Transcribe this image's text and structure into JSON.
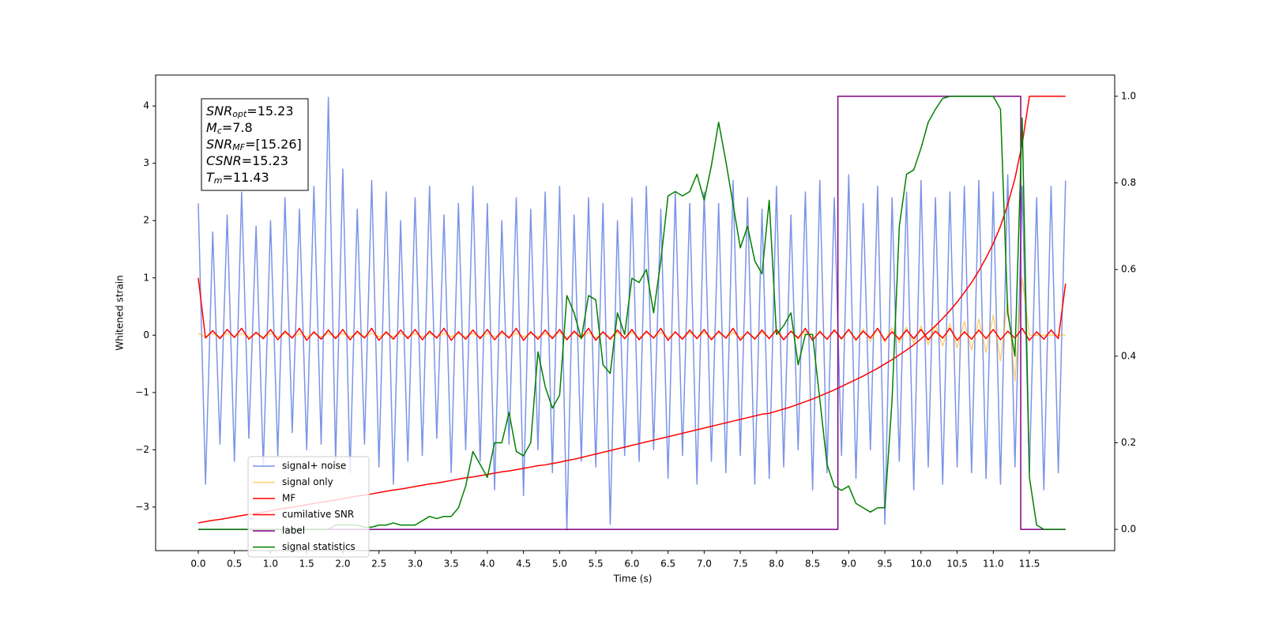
{
  "chart_data": {
    "type": "line",
    "xlabel": "Time (s)",
    "ylabel": "Whitened strain",
    "xlim": [
      -0.59,
      12.68
    ],
    "ylim": [
      -3.76,
      4.54
    ],
    "y2lim": [
      -0.049,
      1.049
    ],
    "xticks": [
      {
        "value": 0,
        "label": "0.0"
      },
      0.5,
      {
        "value": 1,
        "label": "1.0"
      },
      1.5,
      {
        "value": 2,
        "label": "2.0"
      },
      2.5,
      {
        "value": 3,
        "label": "3.0"
      },
      3.5,
      {
        "value": 4,
        "label": "4.0"
      },
      4.5,
      {
        "value": 5,
        "label": "5.0"
      },
      5.5,
      {
        "value": 6,
        "label": "6.0"
      },
      6.5,
      {
        "value": 7,
        "label": "7.0"
      },
      7.5,
      {
        "value": 8,
        "label": "8.0"
      },
      8.5,
      {
        "value": 9,
        "label": "9.0"
      },
      9.5,
      {
        "value": 10,
        "label": "10.0"
      },
      10.5,
      {
        "value": 11,
        "label": "11.0"
      },
      11.5
    ],
    "yticks": [
      {
        "value": -3,
        "label": "−3"
      },
      {
        "value": -2,
        "label": "−2"
      },
      {
        "value": -1,
        "label": "−1"
      },
      0,
      1,
      2,
      3,
      4
    ],
    "y2ticks": [
      {
        "value": 0,
        "label": "0.0"
      },
      0.2,
      0.4,
      0.6,
      0.8,
      {
        "value": 1,
        "label": "1.0"
      }
    ],
    "annotations": [
      {
        "symbol": "SNR",
        "sub": "opt",
        "text": "=15.23"
      },
      {
        "symbol": "M",
        "sub": "c",
        "text": "=7.8"
      },
      {
        "symbol": "SNR",
        "sub": "MF",
        "text": "=[15.26]"
      },
      {
        "symbol": "CSNR",
        "text": "=15.23"
      },
      {
        "symbol": "T",
        "sub": "m",
        "text": "=11.43"
      }
    ],
    "legend": "lower left",
    "x": [
      0,
      0.1,
      0.2,
      0.3,
      0.4,
      0.5,
      0.6,
      0.7,
      0.8,
      0.9,
      1,
      1.1,
      1.2,
      1.3,
      1.4,
      1.5,
      1.6,
      1.7,
      1.8,
      1.9,
      2,
      2.1,
      2.2,
      2.3,
      2.4,
      2.5,
      2.6,
      2.7,
      2.8,
      2.9,
      3,
      3.1,
      3.2,
      3.3,
      3.4,
      3.5,
      3.6,
      3.7,
      3.8,
      3.9,
      4,
      4.1,
      4.2,
      4.3,
      4.4,
      4.5,
      4.6,
      4.7,
      4.8,
      4.9,
      5,
      5.1,
      5.2,
      5.3,
      5.4,
      5.5,
      5.6,
      5.7,
      5.8,
      5.9,
      6,
      6.1,
      6.2,
      6.3,
      6.4,
      6.5,
      6.6,
      6.7,
      6.8,
      6.9,
      7,
      7.1,
      7.2,
      7.3,
      7.4,
      7.5,
      7.6,
      7.7,
      7.8,
      7.9,
      8,
      8.1,
      8.2,
      8.3,
      8.4,
      8.5,
      8.6,
      8.7,
      8.8,
      8.9,
      9,
      9.1,
      9.2,
      9.3,
      9.4,
      9.5,
      9.6,
      9.7,
      9.8,
      9.9,
      10,
      10.1,
      10.2,
      10.3,
      10.4,
      10.5,
      10.6,
      10.7,
      10.8,
      10.9,
      11,
      11.1,
      11.2,
      11.3,
      11.4,
      11.5,
      11.6,
      11.7,
      11.8,
      11.9,
      12
    ],
    "series": [
      {
        "name": "signal+ noise",
        "color": "#7b94e6",
        "values": [
          2.3,
          -2.6,
          1.8,
          -1.9,
          2.1,
          -2.2,
          2.5,
          -1.8,
          1.9,
          -2.3,
          2.0,
          -2.1,
          2.4,
          -1.7,
          2.2,
          -2.0,
          2.6,
          -1.9,
          4.15,
          -2.2,
          2.9,
          -2.4,
          2.2,
          -1.9,
          2.7,
          -2.3,
          2.5,
          -2.6,
          2.0,
          -2.2,
          2.4,
          -2.1,
          2.6,
          -1.8,
          2.1,
          -2.4,
          2.3,
          -2.0,
          2.6,
          -2.2,
          2.3,
          -2.7,
          2.0,
          -1.9,
          2.4,
          -2.8,
          2.2,
          -2.0,
          2.5,
          -2.4,
          2.6,
          -3.4,
          2.1,
          -2.2,
          2.4,
          -2.3,
          2.3,
          -3.3,
          2.0,
          -2.1,
          2.4,
          -2.2,
          2.6,
          -2.0,
          2.2,
          -2.5,
          2.5,
          -2.1,
          2.3,
          -2.6,
          2.5,
          -2.2,
          2.3,
          -2.4,
          2.7,
          -2.1,
          2.4,
          -2.6,
          2.2,
          -2.5,
          2.6,
          -2.3,
          2.1,
          -2.0,
          2.5,
          -2.7,
          2.7,
          -2.4,
          2.4,
          -2.1,
          2.8,
          -2.5,
          2.3,
          -2.0,
          2.6,
          -3.3,
          2.4,
          -2.2,
          2.5,
          -2.7,
          2.7,
          -2.3,
          2.4,
          -2.6,
          2.5,
          -2.3,
          2.6,
          -2.4,
          2.7,
          -2.5,
          2.5,
          -2.6,
          2.8,
          -2.3,
          2.6,
          -2.4,
          2.4,
          -2.7,
          2.6,
          -2.4,
          2.7
        ]
      },
      {
        "name": "signal only",
        "color": "#ffa500",
        "values": [
          0.03,
          -0.03,
          0.03,
          -0.03,
          0.03,
          -0.03,
          0.03,
          -0.03,
          0.03,
          -0.03,
          0.03,
          -0.03,
          0.03,
          -0.03,
          0.03,
          -0.03,
          0.03,
          -0.03,
          0.03,
          -0.03,
          0.03,
          -0.03,
          0.03,
          -0.03,
          0.03,
          -0.03,
          0.03,
          -0.03,
          0.03,
          -0.03,
          0.03,
          -0.03,
          0.03,
          -0.03,
          0.03,
          -0.03,
          0.03,
          -0.03,
          0.03,
          -0.03,
          0.03,
          -0.03,
          0.03,
          -0.03,
          0.03,
          -0.03,
          0.03,
          -0.03,
          0.03,
          -0.03,
          0.05,
          -0.05,
          0.05,
          -0.05,
          0.05,
          -0.05,
          0.05,
          -0.05,
          0.05,
          -0.05,
          0.05,
          -0.05,
          0.05,
          -0.05,
          0.05,
          -0.05,
          0.05,
          -0.05,
          0.05,
          -0.05,
          0.05,
          -0.05,
          0.05,
          -0.05,
          0.05,
          -0.05,
          0.05,
          -0.05,
          0.05,
          -0.05,
          0.07,
          -0.07,
          0.07,
          -0.07,
          0.07,
          -0.08,
          0.08,
          -0.08,
          0.08,
          -0.08,
          0.1,
          -0.1,
          0.11,
          -0.11,
          0.12,
          -0.12,
          0.13,
          -0.13,
          0.14,
          -0.14,
          0.16,
          -0.17,
          0.18,
          -0.19,
          0.2,
          -0.22,
          0.24,
          -0.26,
          0.28,
          -0.3,
          0.35,
          -0.45,
          0.6,
          -0.8,
          1.0,
          0,
          0,
          0,
          0,
          0,
          0
        ]
      },
      {
        "name": "MF",
        "color": "#ff0000",
        "values": [
          1.0,
          -0.05,
          0.08,
          -0.06,
          0.1,
          -0.04,
          0.12,
          -0.07,
          0.05,
          -0.06,
          0.1,
          -0.08,
          0.07,
          -0.05,
          0.12,
          -0.09,
          0.06,
          -0.07,
          0.09,
          -0.06,
          0.1,
          -0.08,
          0.07,
          -0.05,
          0.12,
          -0.09,
          0.06,
          -0.07,
          0.09,
          -0.06,
          0.1,
          -0.08,
          0.07,
          -0.05,
          0.12,
          -0.09,
          0.06,
          -0.07,
          0.09,
          -0.06,
          0.1,
          -0.08,
          0.07,
          -0.05,
          0.12,
          -0.09,
          0.06,
          -0.07,
          0.09,
          -0.06,
          0.1,
          -0.08,
          0.07,
          -0.05,
          0.12,
          -0.09,
          0.06,
          -0.07,
          0.09,
          -0.06,
          0.1,
          -0.08,
          0.07,
          -0.05,
          0.12,
          -0.09,
          0.06,
          -0.07,
          0.09,
          -0.06,
          0.1,
          -0.08,
          0.07,
          -0.05,
          0.12,
          -0.09,
          0.06,
          -0.07,
          0.09,
          -0.06,
          0.1,
          -0.08,
          0.07,
          -0.05,
          0.12,
          -0.09,
          0.06,
          -0.07,
          0.09,
          -0.06,
          0.1,
          -0.08,
          0.07,
          -0.05,
          0.12,
          -0.09,
          0.06,
          -0.07,
          0.09,
          -0.06,
          0.1,
          -0.08,
          0.07,
          -0.05,
          0.12,
          -0.09,
          0.06,
          -0.07,
          0.09,
          -0.06,
          0.1,
          -0.08,
          0.07,
          -0.05,
          0.12,
          -0.09,
          0.06,
          -0.07,
          0.09,
          -0.06,
          0.9
        ]
      },
      {
        "name": "cumilative SNR",
        "color": "#ff0000",
        "axis": "y2",
        "values": [
          0.015,
          0.018,
          0.021,
          0.023,
          0.026,
          0.029,
          0.032,
          0.035,
          0.037,
          0.04,
          0.043,
          0.046,
          0.049,
          0.051,
          0.054,
          0.057,
          0.06,
          0.063,
          0.065,
          0.068,
          0.071,
          0.074,
          0.077,
          0.079,
          0.082,
          0.085,
          0.088,
          0.091,
          0.093,
          0.096,
          0.099,
          0.102,
          0.105,
          0.107,
          0.11,
          0.113,
          0.116,
          0.119,
          0.121,
          0.124,
          0.127,
          0.13,
          0.133,
          0.135,
          0.138,
          0.141,
          0.144,
          0.147,
          0.149,
          0.152,
          0.155,
          0.159,
          0.162,
          0.166,
          0.17,
          0.174,
          0.178,
          0.182,
          0.186,
          0.19,
          0.194,
          0.198,
          0.202,
          0.206,
          0.21,
          0.214,
          0.218,
          0.222,
          0.226,
          0.23,
          0.234,
          0.238,
          0.242,
          0.246,
          0.25,
          0.254,
          0.258,
          0.262,
          0.266,
          0.268,
          0.273,
          0.278,
          0.283,
          0.289,
          0.295,
          0.301,
          0.308,
          0.315,
          0.322,
          0.33,
          0.338,
          0.346,
          0.354,
          0.363,
          0.372,
          0.382,
          0.392,
          0.403,
          0.414,
          0.426,
          0.44,
          0.455,
          0.47,
          0.487,
          0.505,
          0.525,
          0.547,
          0.57,
          0.597,
          0.627,
          0.66,
          0.7,
          0.75,
          0.81,
          0.89,
          1,
          1,
          1,
          1,
          1,
          1
        ]
      },
      {
        "name": "label",
        "color": "#800080",
        "axis": "y2",
        "x": [
          0,
          8.85,
          8.85,
          11.38,
          11.38,
          12
        ],
        "values": [
          0,
          0,
          1,
          1,
          0,
          0
        ]
      },
      {
        "name": "signal statistics",
        "color": "#008000",
        "axis": "y2",
        "values": [
          0,
          0,
          0,
          0,
          0,
          0,
          0,
          0,
          0,
          0,
          0,
          0,
          0,
          0,
          0,
          0,
          0,
          0,
          0,
          0.01,
          0.01,
          0.01,
          0.01,
          0.005,
          0.005,
          0.01,
          0.01,
          0.015,
          0.01,
          0.01,
          0.01,
          0.02,
          0.03,
          0.025,
          0.03,
          0.03,
          0.05,
          0.1,
          0.18,
          0.15,
          0.12,
          0.2,
          0.2,
          0.27,
          0.18,
          0.17,
          0.2,
          0.41,
          0.33,
          0.28,
          0.31,
          0.54,
          0.5,
          0.44,
          0.54,
          0.53,
          0.38,
          0.36,
          0.5,
          0.45,
          0.58,
          0.57,
          0.6,
          0.5,
          0.62,
          0.77,
          0.78,
          0.77,
          0.78,
          0.82,
          0.76,
          0.84,
          0.94,
          0.85,
          0.75,
          0.65,
          0.7,
          0.62,
          0.59,
          0.76,
          0.45,
          0.47,
          0.5,
          0.38,
          0.45,
          0.45,
          0.3,
          0.15,
          0.1,
          0.09,
          0.1,
          0.06,
          0.05,
          0.04,
          0.05,
          0.05,
          0.3,
          0.7,
          0.82,
          0.83,
          0.88,
          0.94,
          0.97,
          0.995,
          1,
          1,
          1,
          1,
          1,
          1,
          1,
          0.97,
          0.5,
          0.4,
          0.95,
          0.12,
          0.01,
          0,
          0,
          0,
          0
        ]
      }
    ]
  }
}
